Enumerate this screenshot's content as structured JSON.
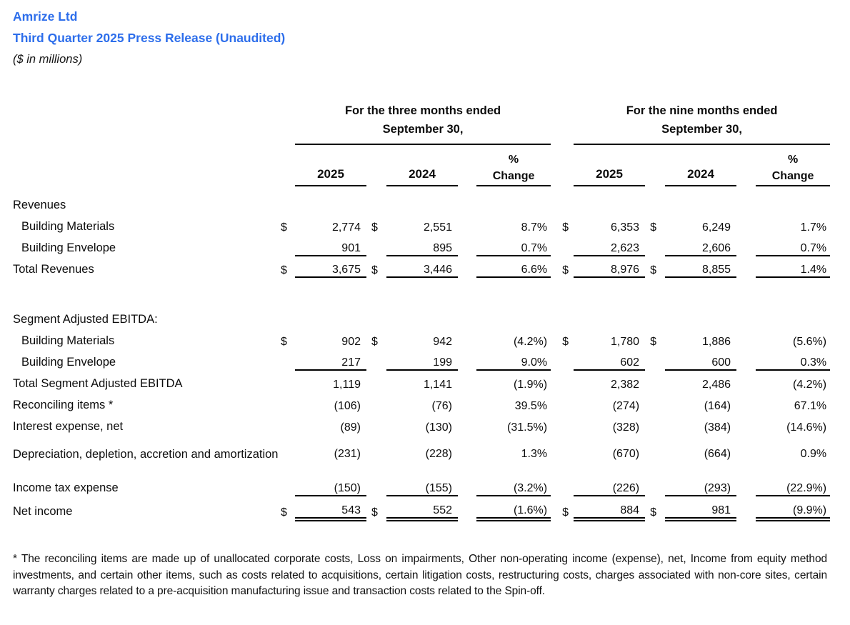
{
  "header": {
    "company": "Amrize Ltd",
    "title": "Third Quarter 2025 Press Release (Unaudited)",
    "note": "($ in millions)"
  },
  "table": {
    "group_three": "For the three months ended\nSeptember 30,",
    "group_nine": "For the nine months ended\nSeptember 30,",
    "col_2025": "2025",
    "col_2024": "2024",
    "col_pct": "%\nChange"
  },
  "rows": {
    "revenues_header": {
      "label": "Revenues"
    },
    "rev_building_materials": {
      "label": "Building Materials",
      "d": "$",
      "q25": "2,774",
      "q24": "2,551",
      "qc": "8.7%",
      "n25": "6,353",
      "n24": "6,249",
      "nc": "1.7%"
    },
    "rev_building_envelope": {
      "label": "Building Envelope",
      "q25": "901",
      "q24": "895",
      "qc": "0.7%",
      "n25": "2,623",
      "n24": "2,606",
      "nc": "0.7%"
    },
    "rev_total": {
      "label": "Total Revenues",
      "d": "$",
      "q25": "3,675",
      "q24": "3,446",
      "qc": "6.6%",
      "n25": "8,976",
      "n24": "8,855",
      "nc": "1.4%"
    },
    "ebitda_header": {
      "label": "Segment Adjusted EBITDA:"
    },
    "eb_building_materials": {
      "label": "Building Materials",
      "d": "$",
      "q25": "902",
      "q24": "942",
      "qc": "(4.2%)",
      "n25": "1,780",
      "n24": "1,886",
      "nc": "(5.6%)"
    },
    "eb_building_envelope": {
      "label": "Building Envelope",
      "q25": "217",
      "q24": "199",
      "qc": "9.0%",
      "n25": "602",
      "n24": "600",
      "nc": "0.3%"
    },
    "eb_total": {
      "label": "Total Segment Adjusted EBITDA",
      "q25": "1,119",
      "q24": "1,141",
      "qc": "(1.9%)",
      "n25": "2,382",
      "n24": "2,486",
      "nc": "(4.2%)"
    },
    "reconciling_items": {
      "label": "Reconciling items *",
      "q25": "(106)",
      "q24": "(76)",
      "qc": "39.5%",
      "n25": "(274)",
      "n24": "(164)",
      "nc": "67.1%"
    },
    "interest_expense": {
      "label": "Interest expense, net",
      "q25": "(89)",
      "q24": "(130)",
      "qc": "(31.5%)",
      "n25": "(328)",
      "n24": "(384)",
      "nc": "(14.6%)"
    },
    "depreciation": {
      "label": "Depreciation, depletion, accretion and amortization",
      "q25": "(231)",
      "q24": "(228)",
      "qc": "1.3%",
      "n25": "(670)",
      "n24": "(664)",
      "nc": "0.9%"
    },
    "income_tax": {
      "label": "Income tax expense",
      "q25": "(150)",
      "q24": "(155)",
      "qc": "(3.2%)",
      "n25": "(226)",
      "n24": "(293)",
      "nc": "(22.9%)"
    },
    "net_income": {
      "label": "Net income",
      "d": "$",
      "q25": "543",
      "q24": "552",
      "qc": "(1.6%)",
      "n25": "884",
      "n24": "981",
      "nc": "(9.9%)"
    }
  },
  "footnote": "* The reconciling items are made up of unallocated corporate costs, Loss on impairments, Other non-operating income (expense), net, Income from equity method investments, and certain other items, such as costs related to acquisitions, certain litigation costs, restructuring costs, charges associated with non-core sites, certain warranty charges related to a pre-acquisition manufacturing issue and transaction costs related to the Spin-off."
}
